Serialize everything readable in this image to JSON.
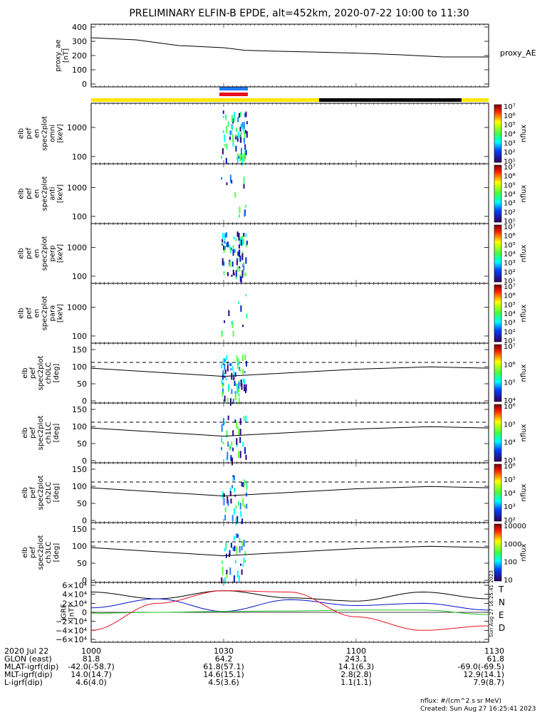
{
  "title": "PRELIMINARY ELFIN-B EPDE, alt=452km, 2020-07-22 10:00 to 11:30",
  "colors": {
    "yellow": "#ffe600",
    "black": "#000000",
    "blue": "#1e7cff",
    "red": "#e8101e",
    "green": "#20c020",
    "navy": "#0010c8"
  },
  "time_ticks": [
    "1000",
    "1030",
    "1100",
    "1130"
  ],
  "footer_rows": [
    {
      "label": "2020 Jul 22",
      "values": [
        "1000",
        "1030",
        "1100",
        "1130"
      ]
    },
    {
      "label": "GLON (east)",
      "values": [
        "81.8",
        "64.2",
        "243.1",
        "61.8"
      ]
    },
    {
      "label": "MLAT-igrf(dip)",
      "values": [
        "-42.0(-58.7)",
        "61.8(57.1)",
        "14.1(6.3)",
        "-69.0(-69.5)"
      ]
    },
    {
      "label": "MLT-igrf(dip)",
      "values": [
        "14.0(14.7)",
        "14.6(15.1)",
        "2.8(2.8)",
        "12.9(14.1)"
      ]
    },
    {
      "label": "L-igrf(dip)",
      "values": [
        "4.6(4.0)",
        "4.5(3.6)",
        "1.1(1.1)",
        "7.9(8.7)"
      ]
    }
  ],
  "footnote": {
    "units": "nflux: #/(cm^2 s sr MeV)",
    "created": "Created: Sun Aug 27 16:25:41 2023"
  },
  "side_stamp": "Sun Aug 27 16:25:41 2023",
  "chart_data": [
    {
      "type": "line",
      "panel": "proxy_ae",
      "ylabel_lines": [
        "proxy_ae",
        "[nT]"
      ],
      "legend": "proxy_AE",
      "yticks": [
        "400",
        "300",
        "200",
        "100",
        "0"
      ],
      "ylim": [
        0,
        400
      ],
      "x": [
        10.0,
        10.17,
        10.33,
        10.5,
        10.58,
        10.67,
        10.83,
        11.0,
        11.17,
        11.33,
        11.5
      ],
      "values": [
        325,
        310,
        270,
        255,
        237,
        232,
        225,
        217,
        205,
        190,
        190
      ]
    },
    {
      "type": "heatmap",
      "panel": "en_omni",
      "ylabel_lines": [
        "elb",
        "pef",
        "en",
        "spec2plot",
        "omni",
        "[keV]"
      ],
      "yticks": [
        "1000",
        "100"
      ],
      "cbar_ticks": [
        "10⁷",
        "10⁶",
        "10⁵",
        "10⁴",
        "10³",
        "10²",
        "10¹"
      ],
      "cbar_label": "nflux"
    },
    {
      "type": "heatmap",
      "panel": "en_anti",
      "ylabel_lines": [
        "elb",
        "pef",
        "en",
        "spec2plot",
        "anti",
        "[keV]"
      ],
      "yticks": [
        "1000",
        "100"
      ],
      "cbar_ticks": [
        "10⁷",
        "10⁶",
        "10⁵",
        "10⁴",
        "10³",
        "10²",
        "10¹"
      ],
      "cbar_label": "nflux"
    },
    {
      "type": "heatmap",
      "panel": "en_perp",
      "ylabel_lines": [
        "elb",
        "pef",
        "en",
        "spec2plot",
        "perp",
        "[keV]"
      ],
      "yticks": [
        "1000",
        "100"
      ],
      "cbar_ticks": [
        "10⁷",
        "10⁶",
        "10⁵",
        "10⁴",
        "10³",
        "10²",
        "10¹"
      ],
      "cbar_label": "nflux"
    },
    {
      "type": "heatmap",
      "panel": "en_para",
      "ylabel_lines": [
        "elb",
        "pef",
        "en",
        "spec2plot",
        "para",
        "[keV]"
      ],
      "yticks": [
        "1000",
        "100"
      ],
      "cbar_ticks": [
        "10⁷",
        "10⁶",
        "10⁵",
        "10⁴",
        "10³",
        "10²",
        "10¹"
      ],
      "cbar_label": "nflux"
    },
    {
      "type": "heatmap",
      "panel": "pa_ch0",
      "ylabel_lines": [
        "elb",
        "pef",
        "spec2plot",
        "ch0LC",
        "[deg]"
      ],
      "yticks": [
        "150",
        "100",
        "50",
        "0"
      ],
      "cbar_ticks": [
        "10⁷",
        "10⁶",
        "10⁵",
        "10⁴"
      ],
      "cbar_label": "nflux"
    },
    {
      "type": "heatmap",
      "panel": "pa_ch1",
      "ylabel_lines": [
        "elb",
        "pef",
        "spec2plot",
        "ch1LC",
        "[deg]"
      ],
      "yticks": [
        "150",
        "100",
        "50",
        "0"
      ],
      "cbar_ticks": [
        "10⁶",
        "10⁵",
        "10⁴",
        "10³"
      ],
      "cbar_label": "nflux"
    },
    {
      "type": "heatmap",
      "panel": "pa_ch2",
      "ylabel_lines": [
        "elb",
        "pef",
        "spec2plot",
        "ch2LC",
        "[deg]"
      ],
      "yticks": [
        "150",
        "100",
        "50",
        "0"
      ],
      "cbar_ticks": [
        "10⁶",
        "10⁵",
        "10⁴",
        "10³",
        "10²"
      ],
      "cbar_label": "nflux"
    },
    {
      "type": "heatmap",
      "panel": "pa_ch3",
      "ylabel_lines": [
        "elb",
        "pef",
        "spec2plot",
        "ch3LC",
        "[deg]"
      ],
      "yticks": [
        "150",
        "100",
        "50",
        "0"
      ],
      "cbar_ticks": [
        "10000",
        "1000",
        "100",
        "10"
      ],
      "cbar_label": "nflux"
    },
    {
      "type": "line",
      "panel": "igrf",
      "ylabel_lines": [
        "IGRF",
        "[nT]"
      ],
      "yticks": [
        "6×10⁴",
        "4×10⁴",
        "2×10⁴",
        "0",
        "−2×10⁴",
        "−4×10⁴",
        "−6×10⁴"
      ],
      "ylim": [
        -60000,
        60000
      ],
      "series": [
        {
          "name": "T",
          "color": "#000000",
          "x": [
            10.0,
            10.25,
            10.5,
            10.75,
            11.0,
            11.25,
            11.5
          ],
          "values": [
            45000,
            30000,
            48000,
            32000,
            25000,
            45000,
            30000
          ]
        },
        {
          "name": "N",
          "color": "#0010c8",
          "x": [
            10.0,
            10.25,
            10.5,
            10.75,
            11.0,
            11.25,
            11.5
          ],
          "values": [
            10000,
            30000,
            2000,
            28000,
            15000,
            20000,
            5000
          ]
        },
        {
          "name": "E",
          "color": "#20c020",
          "x": [
            10.0,
            10.25,
            10.5,
            10.75,
            11.0,
            11.25,
            11.5
          ],
          "values": [
            -2000,
            0,
            2000,
            3000,
            5000,
            5000,
            -5000
          ]
        },
        {
          "name": "D",
          "color": "#e8101e",
          "x": [
            10.0,
            10.25,
            10.5,
            10.75,
            11.0,
            11.25,
            11.5
          ],
          "values": [
            -40000,
            20000,
            48000,
            45000,
            -10000,
            -40000,
            -30000
          ]
        }
      ]
    }
  ]
}
